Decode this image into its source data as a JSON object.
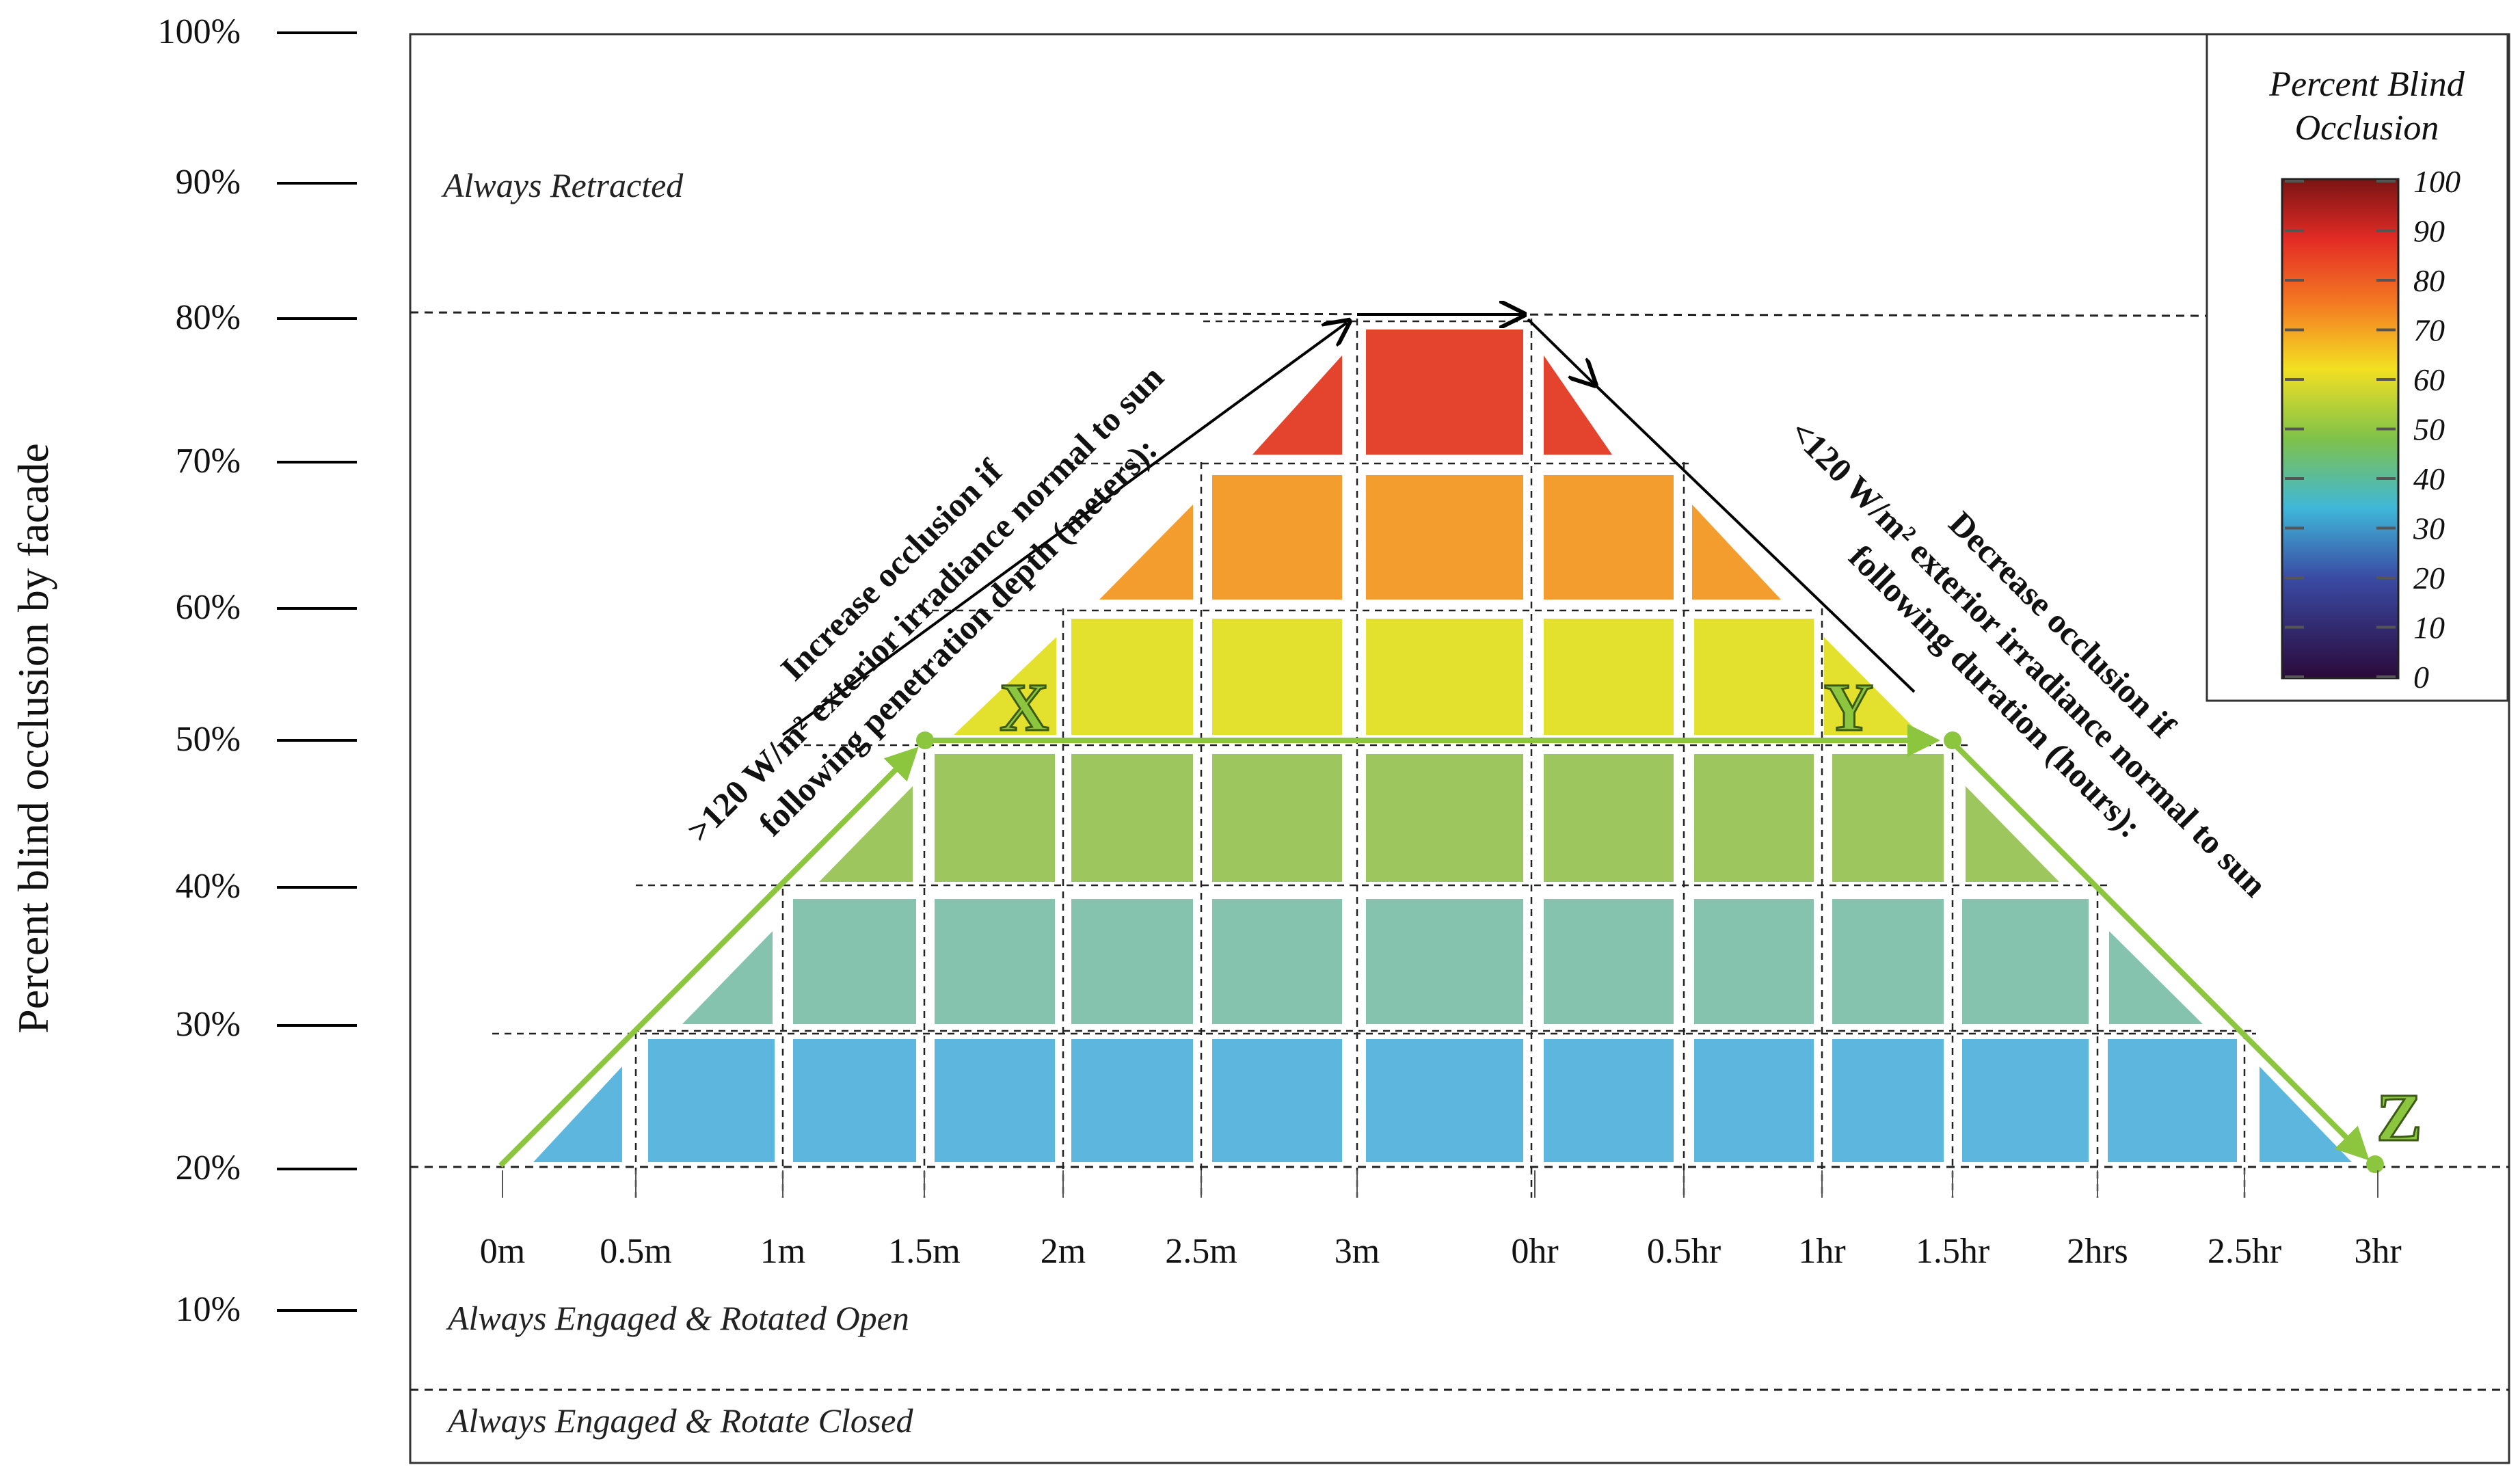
{
  "y_axis": {
    "title": "Percent blind occlusion by facade",
    "ticks": [
      "100%",
      "90%",
      "80%",
      "70%",
      "60%",
      "50%",
      "40%",
      "30%",
      "20%",
      "10%"
    ]
  },
  "x_axis": {
    "penetration_ticks": [
      "0m",
      "0.5m",
      "1m",
      "1.5m",
      "2m",
      "2.5m",
      "3m"
    ],
    "duration_ticks": [
      "0hr",
      "0.5hr",
      "1hr",
      "1.5hr",
      "2hrs",
      "2.5hr",
      "3hr"
    ]
  },
  "regions": {
    "retracted": "Always Retracted",
    "engaged_open": "Always Engaged & Rotated Open",
    "engaged_closed": "Always Engaged & Rotate Closed"
  },
  "rules": {
    "increase_line1": "Increase occlusion if",
    "increase_line2": ">120 W/m² exterior irradiance normal to sun",
    "increase_line3": "following penetration depth (meters):",
    "decrease_line1": "Decrease occlusion if",
    "decrease_line2": "<120 W/m² exterior irradiance normal to sun",
    "decrease_line3": "following duration (hours):"
  },
  "markers": {
    "x": "X",
    "y": "Y",
    "z": "Z"
  },
  "legend": {
    "title_line1": "Percent Blind",
    "title_line2": "Occlusion",
    "ticks": [
      "100",
      "90",
      "80",
      "70",
      "60",
      "50",
      "40",
      "30",
      "20",
      "10",
      "0"
    ]
  },
  "colors": {
    "level_20_30": "#5db6de",
    "level_30_40": "#85c3ae",
    "level_40_50": "#9dc65e",
    "level_50_60": "#e3e12d",
    "level_60_70": "#f49d2f",
    "level_70_80": "#e4432d",
    "path_green": "#8cc63f"
  }
}
